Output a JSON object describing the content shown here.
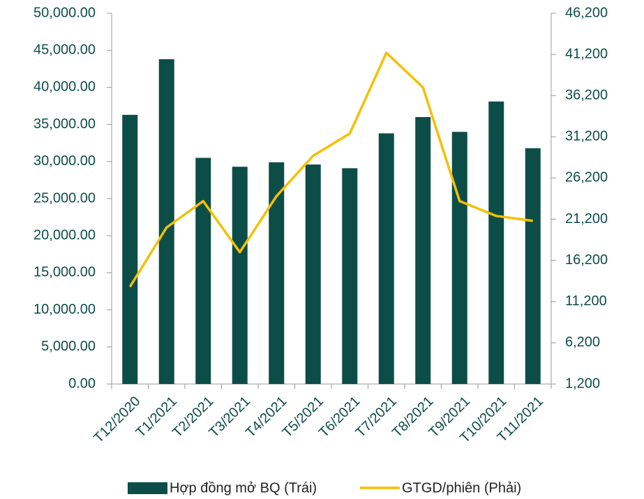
{
  "chart_data": {
    "type": "bar-line",
    "categories": [
      "T12/2020",
      "T1/2021",
      "T2/2021",
      "T3/2021",
      "T4/2021",
      "T5/2021",
      "T6/2021",
      "T7/2021",
      "T8/2021",
      "T9/2021",
      "T10/2021",
      "T11/2021"
    ],
    "series": [
      {
        "name": "Hợp đồng mở BQ (Trái)",
        "type": "bar",
        "color": "#0d4d48",
        "values": [
          36300,
          43800,
          30500,
          29300,
          29900,
          29600,
          29100,
          33800,
          36000,
          34000,
          38100,
          31800
        ]
      },
      {
        "name": "GTGD/phiên (Phải)",
        "type": "line",
        "axis": "y2",
        "color": "#f5c000",
        "values": [
          13000,
          20200,
          23400,
          17200,
          24000,
          28900,
          31600,
          41400,
          37200,
          23400,
          21600,
          21000
        ]
      }
    ],
    "ylim": [
      0,
      50000
    ],
    "yticks": [
      {
        "value": 0,
        "label": "0.00"
      },
      {
        "value": 5000,
        "label": "5,000.00"
      },
      {
        "value": 10000,
        "label": "10,000.00"
      },
      {
        "value": 15000,
        "label": "15,000.00"
      },
      {
        "value": 20000,
        "label": "20,000.00"
      },
      {
        "value": 25000,
        "label": "25,000.00"
      },
      {
        "value": 30000,
        "label": "30,000.00"
      },
      {
        "value": 35000,
        "label": "35,000.00"
      },
      {
        "value": 40000,
        "label": "40,000.00"
      },
      {
        "value": 45000,
        "label": "45,000.00"
      },
      {
        "value": 50000,
        "label": "50,000.00"
      }
    ],
    "y2lim": [
      1200,
      46200
    ],
    "y2ticks": [
      {
        "value": 1200,
        "label": "1,200"
      },
      {
        "value": 6200,
        "label": "6,200"
      },
      {
        "value": 11200,
        "label": "11,200"
      },
      {
        "value": 16200,
        "label": "16,200"
      },
      {
        "value": 21200,
        "label": "21,200"
      },
      {
        "value": 26200,
        "label": "26,200"
      },
      {
        "value": 31200,
        "label": "31,200"
      },
      {
        "value": 36200,
        "label": "36,200"
      },
      {
        "value": 41200,
        "label": "41,200"
      },
      {
        "value": 46200,
        "label": "46,200"
      }
    ],
    "legend": "bottom"
  }
}
